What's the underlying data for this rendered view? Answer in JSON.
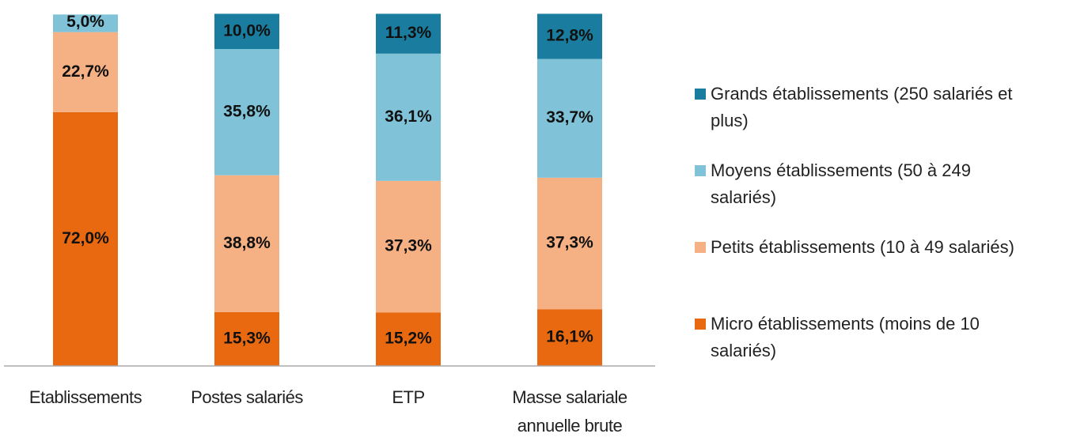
{
  "chart_data": {
    "type": "stacked_bar",
    "categories": [
      "Etablissements",
      "Postes salariés",
      "ETP",
      "Masse salariale annuelle brute"
    ],
    "ylim": [
      0,
      100
    ],
    "series": [
      {
        "name": "Micro établissements (moins de 10 salariés)",
        "color": "#e8690f",
        "values": [
          72.0,
          15.3,
          15.2,
          16.1
        ],
        "value_labels": [
          "72,0%",
          "15,3%",
          "15,2%",
          "16,1%"
        ]
      },
      {
        "name": "Petits établissements (10 à 49 salariés)",
        "color": "#f5b184",
        "values": [
          22.7,
          38.8,
          37.3,
          37.3
        ],
        "value_labels": [
          "22,7%",
          "38,8%",
          "37,3%",
          "37,3%"
        ]
      },
      {
        "name": "Moyens établissements (50 à 249 salariés)",
        "color": "#80c3d8",
        "values": [
          5.0,
          35.8,
          36.1,
          33.7
        ],
        "value_labels": [
          "5,0%",
          "35,8%",
          "36,1%",
          "33,7%"
        ]
      },
      {
        "name": "Grands établissements (250 salariés et plus)",
        "color": "#1a7c9e",
        "values": [
          null,
          10.0,
          11.3,
          12.8
        ],
        "value_labels": [
          null,
          "10,0%",
          "11,3%",
          "12,8%"
        ]
      }
    ]
  }
}
